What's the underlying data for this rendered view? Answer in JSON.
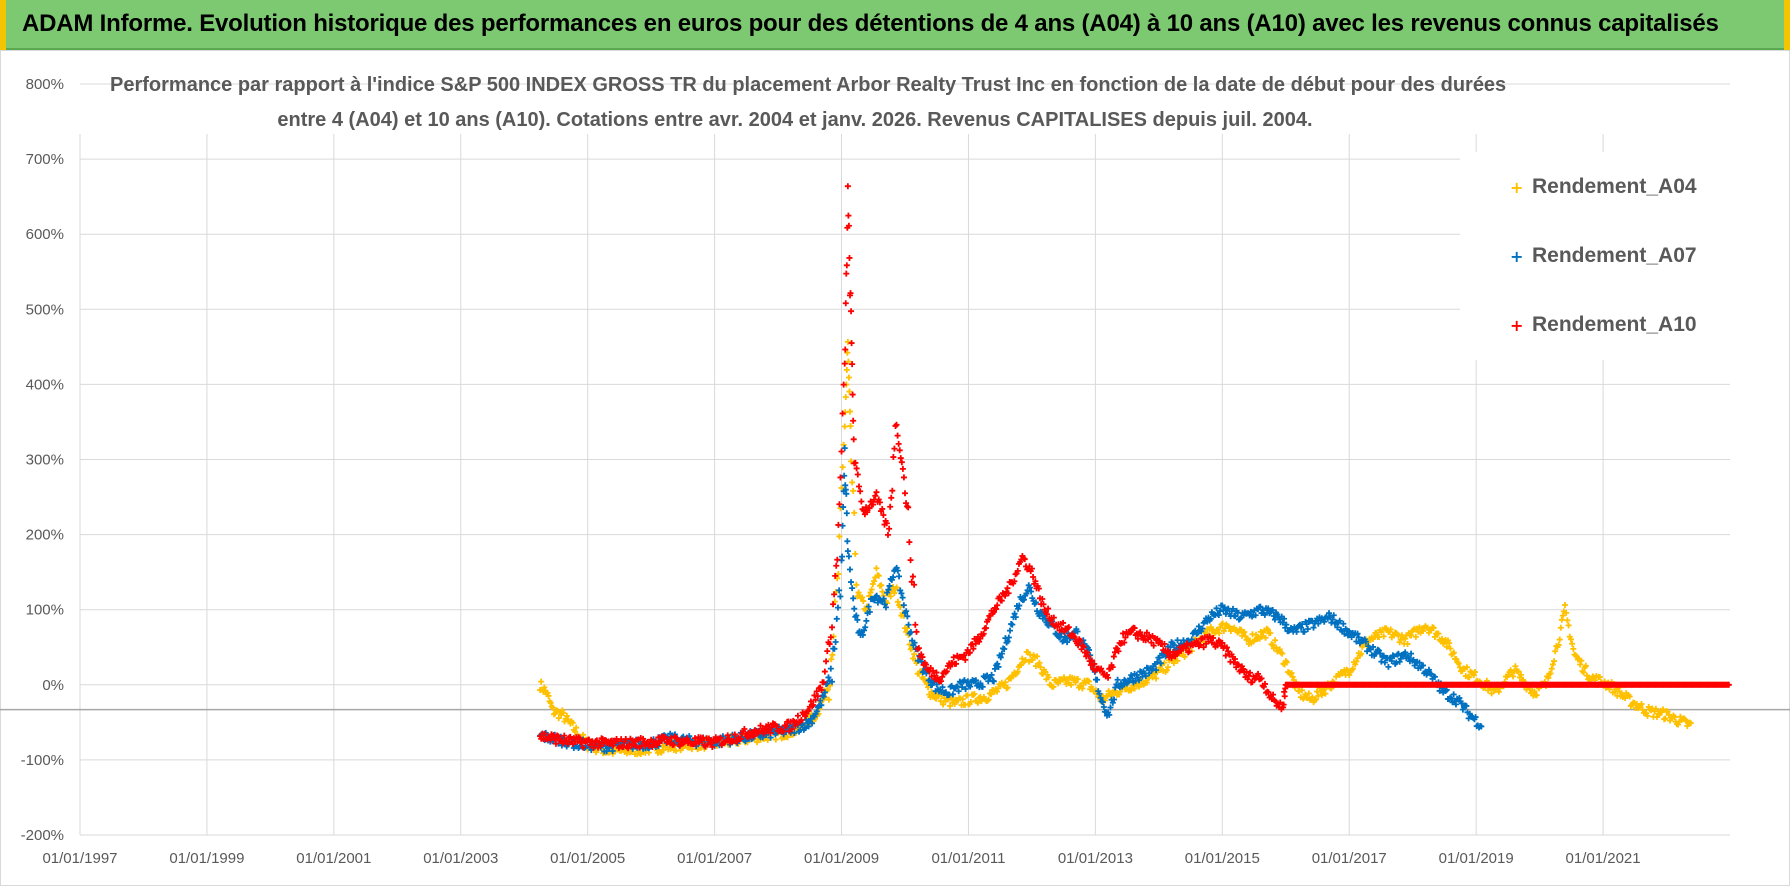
{
  "banner": {
    "title": "ADAM Informe. Evolution historique des performances en euros pour des détentions de 4 ans (A04) à 10 ans (A10) avec les revenus connus capitalisés",
    "color": "#7dc972",
    "accent": "#f2c500"
  },
  "chart_data": {
    "type": "scatter",
    "title_line1": "Performance par rapport à l'indice S&P 500 INDEX GROSS TR  du placement Arbor Realty Trust Inc en fonction de la date de début pour des durées",
    "title_line2": "entre 4 (A04) et 10 ans (A10). Cotations entre avr. 2004 et janv. 2026. Revenus CAPITALISES depuis juil. 2004.",
    "xlabel": "",
    "ylabel": "",
    "xlim": [
      1997.0,
      2023.0
    ],
    "ylim": [
      -200,
      800
    ],
    "y_ticks": [
      "800%",
      "700%",
      "600%",
      "500%",
      "400%",
      "300%",
      "200%",
      "100%",
      "0%",
      "-100%",
      "-200%"
    ],
    "y_tick_values": [
      800,
      700,
      600,
      500,
      400,
      300,
      200,
      100,
      0,
      -100,
      -200
    ],
    "x_ticks": [
      "01/01/1997",
      "01/01/1999",
      "01/01/2001",
      "01/01/2003",
      "01/01/2005",
      "01/01/2007",
      "01/01/2009",
      "01/01/2011",
      "01/01/2013",
      "01/01/2015",
      "01/01/2017",
      "01/01/2019",
      "01/01/2021"
    ],
    "x_tick_values": [
      1997,
      1999,
      2001,
      2003,
      2005,
      2007,
      2009,
      2011,
      2013,
      2015,
      2017,
      2019,
      2021
    ],
    "reference_line": -33,
    "legend_position": "top-right",
    "series": [
      {
        "name": "Rendement_A04",
        "color": "#ffc000",
        "points": [
          [
            2004.25,
            0
          ],
          [
            2004.35,
            -10
          ],
          [
            2004.45,
            -35
          ],
          [
            2004.6,
            -40
          ],
          [
            2004.8,
            -60
          ],
          [
            2005.0,
            -80
          ],
          [
            2005.3,
            -88
          ],
          [
            2005.6,
            -88
          ],
          [
            2006.0,
            -85
          ],
          [
            2006.5,
            -80
          ],
          [
            2007.0,
            -78
          ],
          [
            2007.5,
            -72
          ],
          [
            2007.8,
            -68
          ],
          [
            2008.0,
            -66
          ],
          [
            2008.3,
            -60
          ],
          [
            2008.6,
            -40
          ],
          [
            2008.8,
            0
          ],
          [
            2008.95,
            150
          ],
          [
            2009.05,
            350
          ],
          [
            2009.1,
            450
          ],
          [
            2009.15,
            300
          ],
          [
            2009.25,
            120
          ],
          [
            2009.4,
            100
          ],
          [
            2009.55,
            150
          ],
          [
            2009.7,
            110
          ],
          [
            2009.85,
            130
          ],
          [
            2010.0,
            80
          ],
          [
            2010.2,
            20
          ],
          [
            2010.4,
            -10
          ],
          [
            2010.6,
            -20
          ],
          [
            2010.8,
            -25
          ],
          [
            2011.0,
            -20
          ],
          [
            2011.3,
            -15
          ],
          [
            2011.6,
            0
          ],
          [
            2011.9,
            40
          ],
          [
            2012.1,
            30
          ],
          [
            2012.3,
            0
          ],
          [
            2012.6,
            5
          ],
          [
            2012.9,
            0
          ],
          [
            2013.1,
            -20
          ],
          [
            2013.3,
            -10
          ],
          [
            2013.6,
            0
          ],
          [
            2013.9,
            10
          ],
          [
            2014.2,
            30
          ],
          [
            2014.5,
            50
          ],
          [
            2014.8,
            70
          ],
          [
            2015.1,
            80
          ],
          [
            2015.4,
            60
          ],
          [
            2015.7,
            70
          ],
          [
            2016.0,
            30
          ],
          [
            2016.2,
            -10
          ],
          [
            2016.4,
            -20
          ],
          [
            2016.7,
            0
          ],
          [
            2017.0,
            20
          ],
          [
            2017.3,
            60
          ],
          [
            2017.6,
            70
          ],
          [
            2017.9,
            60
          ],
          [
            2018.2,
            80
          ],
          [
            2018.5,
            60
          ],
          [
            2018.8,
            20
          ],
          [
            2019.0,
            10
          ],
          [
            2019.3,
            -10
          ],
          [
            2019.6,
            20
          ],
          [
            2019.9,
            -10
          ],
          [
            2020.1,
            0
          ],
          [
            2020.3,
            60
          ],
          [
            2020.4,
            100
          ],
          [
            2020.55,
            40
          ],
          [
            2020.8,
            10
          ],
          [
            2021.1,
            0
          ],
          [
            2021.4,
            -20
          ],
          [
            2021.7,
            -35
          ],
          [
            2022.0,
            -40
          ],
          [
            2022.2,
            -48
          ],
          [
            2022.4,
            -55
          ]
        ]
      },
      {
        "name": "Rendement_A07",
        "color": "#0070c0",
        "points": [
          [
            2004.25,
            -68
          ],
          [
            2004.5,
            -72
          ],
          [
            2004.8,
            -78
          ],
          [
            2005.0,
            -80
          ],
          [
            2005.3,
            -82
          ],
          [
            2005.6,
            -80
          ],
          [
            2006.0,
            -78
          ],
          [
            2006.3,
            -72
          ],
          [
            2006.6,
            -75
          ],
          [
            2007.0,
            -76
          ],
          [
            2007.3,
            -72
          ],
          [
            2007.6,
            -68
          ],
          [
            2007.9,
            -64
          ],
          [
            2008.2,
            -60
          ],
          [
            2008.5,
            -50
          ],
          [
            2008.7,
            -20
          ],
          [
            2008.85,
            20
          ],
          [
            2009.0,
            150
          ],
          [
            2009.05,
            300
          ],
          [
            2009.1,
            180
          ],
          [
            2009.2,
            100
          ],
          [
            2009.3,
            60
          ],
          [
            2009.5,
            120
          ],
          [
            2009.7,
            110
          ],
          [
            2009.85,
            160
          ],
          [
            2010.0,
            100
          ],
          [
            2010.15,
            50
          ],
          [
            2010.3,
            20
          ],
          [
            2010.5,
            -5
          ],
          [
            2010.7,
            -10
          ],
          [
            2010.9,
            0
          ],
          [
            2011.1,
            0
          ],
          [
            2011.4,
            10
          ],
          [
            2011.6,
            60
          ],
          [
            2011.8,
            110
          ],
          [
            2011.95,
            130
          ],
          [
            2012.1,
            100
          ],
          [
            2012.3,
            80
          ],
          [
            2012.5,
            60
          ],
          [
            2012.7,
            70
          ],
          [
            2012.9,
            40
          ],
          [
            2013.1,
            -20
          ],
          [
            2013.2,
            -40
          ],
          [
            2013.35,
            0
          ],
          [
            2013.6,
            10
          ],
          [
            2013.9,
            20
          ],
          [
            2014.2,
            50
          ],
          [
            2014.5,
            60
          ],
          [
            2014.8,
            90
          ],
          [
            2015.0,
            100
          ],
          [
            2015.3,
            90
          ],
          [
            2015.6,
            100
          ],
          [
            2015.9,
            90
          ],
          [
            2016.1,
            70
          ],
          [
            2016.4,
            80
          ],
          [
            2016.7,
            90
          ],
          [
            2017.0,
            70
          ],
          [
            2017.3,
            50
          ],
          [
            2017.6,
            30
          ],
          [
            2017.9,
            40
          ],
          [
            2018.2,
            20
          ],
          [
            2018.5,
            -10
          ],
          [
            2018.7,
            -20
          ],
          [
            2018.9,
            -40
          ],
          [
            2019.1,
            -55
          ]
        ]
      },
      {
        "name": "Rendement_A10",
        "color": "#ff0000",
        "points": [
          [
            2004.25,
            -68
          ],
          [
            2004.5,
            -72
          ],
          [
            2004.8,
            -76
          ],
          [
            2005.2,
            -78
          ],
          [
            2005.6,
            -78
          ],
          [
            2006.0,
            -76
          ],
          [
            2006.3,
            -74
          ],
          [
            2006.6,
            -76
          ],
          [
            2007.0,
            -77
          ],
          [
            2007.3,
            -70
          ],
          [
            2007.6,
            -62
          ],
          [
            2007.9,
            -58
          ],
          [
            2008.2,
            -55
          ],
          [
            2008.5,
            -30
          ],
          [
            2008.7,
            0
          ],
          [
            2008.85,
            80
          ],
          [
            2008.95,
            200
          ],
          [
            2009.05,
            420
          ],
          [
            2009.1,
            650
          ],
          [
            2009.15,
            480
          ],
          [
            2009.2,
            300
          ],
          [
            2009.35,
            230
          ],
          [
            2009.55,
            250
          ],
          [
            2009.75,
            200
          ],
          [
            2009.85,
            350
          ],
          [
            2009.95,
            300
          ],
          [
            2010.05,
            220
          ],
          [
            2010.2,
            50
          ],
          [
            2010.35,
            20
          ],
          [
            2010.55,
            10
          ],
          [
            2010.75,
            30
          ],
          [
            2010.95,
            40
          ],
          [
            2011.15,
            60
          ],
          [
            2011.4,
            100
          ],
          [
            2011.65,
            130
          ],
          [
            2011.85,
            170
          ],
          [
            2012.0,
            150
          ],
          [
            2012.2,
            100
          ],
          [
            2012.4,
            80
          ],
          [
            2012.6,
            70
          ],
          [
            2012.8,
            50
          ],
          [
            2013.0,
            20
          ],
          [
            2013.2,
            10
          ],
          [
            2013.4,
            60
          ],
          [
            2013.6,
            70
          ],
          [
            2013.9,
            60
          ],
          [
            2014.2,
            40
          ],
          [
            2014.5,
            50
          ],
          [
            2014.8,
            60
          ],
          [
            2015.0,
            50
          ],
          [
            2015.2,
            30
          ],
          [
            2015.4,
            10
          ],
          [
            2015.6,
            10
          ],
          [
            2015.8,
            -20
          ],
          [
            2015.95,
            -30
          ],
          [
            2016.0,
            0
          ],
          [
            2017.0,
            0
          ],
          [
            2018.0,
            0
          ],
          [
            2019.0,
            0
          ],
          [
            2020.0,
            0
          ],
          [
            2021.0,
            0
          ],
          [
            2022.0,
            0
          ],
          [
            2023.0,
            0
          ]
        ]
      }
    ]
  }
}
